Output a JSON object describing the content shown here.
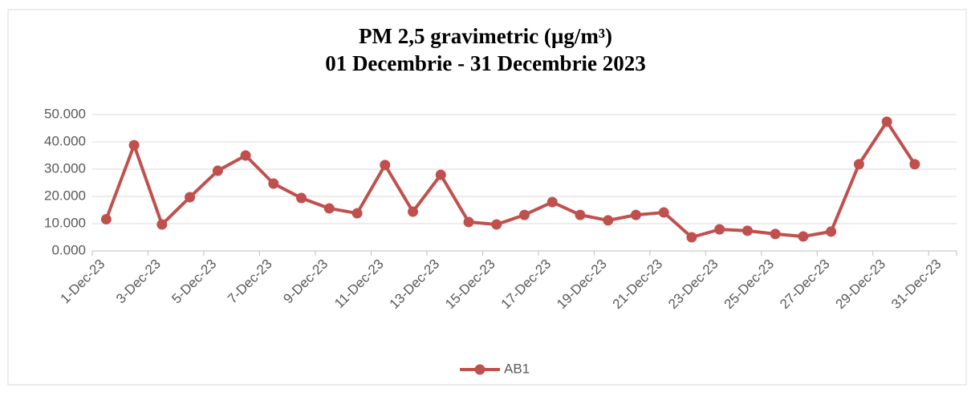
{
  "chart_data": {
    "type": "line",
    "title": "PM 2,5 gravimetric (µg/m³)",
    "subtitle": "01 Decembrie - 31 Decembrie 2023",
    "categories": [
      "1-Dec-23",
      null,
      "3-Dec-23",
      null,
      "5-Dec-23",
      null,
      "7-Dec-23",
      null,
      "9-Dec-23",
      null,
      "11-Dec-23",
      null,
      "13-Dec-23",
      null,
      "15-Dec-23",
      null,
      "17-Dec-23",
      null,
      "19-Dec-23",
      null,
      "21-Dec-23",
      null,
      "23-Dec-23",
      null,
      "25-Dec-23",
      null,
      "27-Dec-23",
      null,
      "29-Dec-23",
      null,
      "31-Dec-23"
    ],
    "series": [
      {
        "name": "AB1",
        "color": "#c0504d",
        "values": [
          11.6,
          38.8,
          9.7,
          19.7,
          29.4,
          35.0,
          24.7,
          19.4,
          15.6,
          13.8,
          31.5,
          14.4,
          27.9,
          10.6,
          9.7,
          13.2,
          17.9,
          13.2,
          11.2,
          13.2,
          14.1,
          5.0,
          7.9,
          7.4,
          6.2,
          5.3,
          7.1,
          31.8,
          47.4,
          31.8,
          null
        ]
      }
    ],
    "ylim": [
      0,
      50
    ],
    "yticks": [
      {
        "value": 0,
        "label": "0.000"
      },
      {
        "value": 10,
        "label": "10.000"
      },
      {
        "value": 20,
        "label": "20.000"
      },
      {
        "value": 30,
        "label": "30.000"
      },
      {
        "value": 40,
        "label": "40.000"
      },
      {
        "value": 50,
        "label": "50.000"
      }
    ],
    "grid": true,
    "legend": "bottom"
  }
}
